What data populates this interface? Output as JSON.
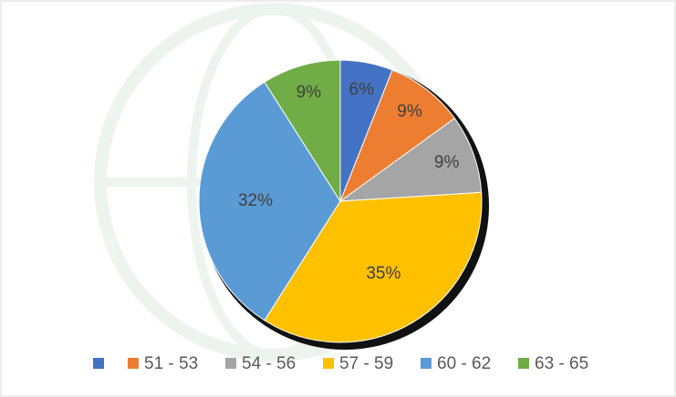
{
  "chart_data": {
    "type": "pie",
    "categories": [
      null,
      "51 - 53",
      "54 - 56",
      "57 - 59",
      "60 - 62",
      "63 - 65"
    ],
    "values": [
      6,
      9,
      9,
      35,
      32,
      9
    ],
    "value_labels": [
      "6%",
      "9%",
      "9%",
      "35%",
      "32%",
      "9%"
    ],
    "colors": [
      "#4472c4",
      "#ed7d31",
      "#a5a5a5",
      "#ffc000",
      "#5b9bd5",
      "#70ad47"
    ],
    "legend": "bottom"
  }
}
